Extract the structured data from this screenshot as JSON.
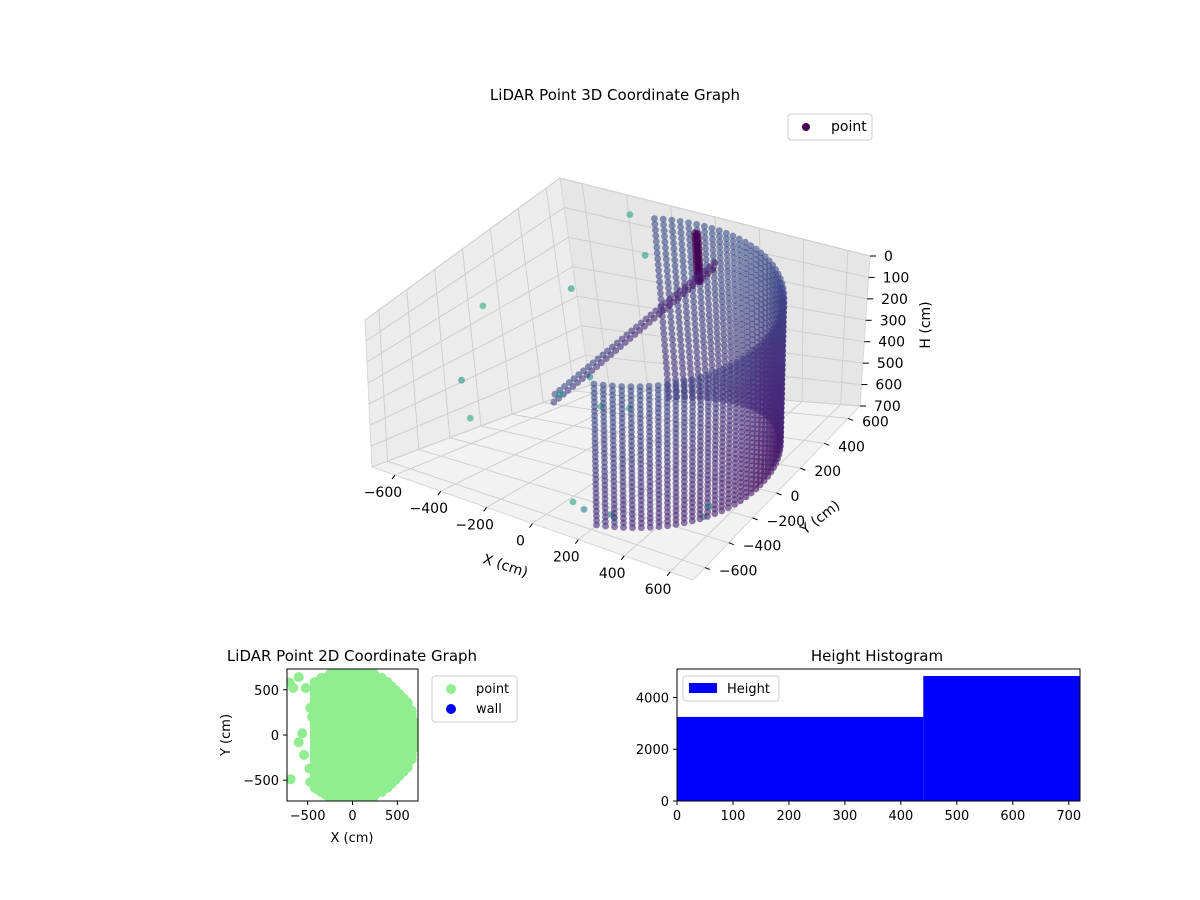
{
  "chart_data": [
    {
      "type": "scatter",
      "projection": "3d",
      "title": "LiDAR Point 3D Coordinate Graph",
      "xlabel": "X (cm)",
      "ylabel": "Y (cm)",
      "zlabel": "H (cm)",
      "xlim": [
        -700,
        700
      ],
      "ylim": [
        -700,
        700
      ],
      "zlim": [
        0,
        700
      ],
      "z_inverted": true,
      "x_ticks": [
        "−600",
        "−400",
        "−200",
        "0",
        "200",
        "400",
        "600"
      ],
      "y_ticks": [
        "−600",
        "−400",
        "−200",
        "0",
        "200",
        "400",
        "600"
      ],
      "z_ticks": [
        "0",
        "100",
        "200",
        "300",
        "400",
        "500",
        "600",
        "700"
      ],
      "colormap": "viridis",
      "grid": true,
      "legend": {
        "position": "top-right",
        "entries": [
          "point"
        ]
      },
      "series": [
        {
          "name": "point",
          "color": "#440154",
          "structures": [
            {
              "kind": "wall-arc",
              "radius": 620,
              "angle_from_deg": -70,
              "angle_to_deg": 110,
              "h_from": 0,
              "h_to": 700
            },
            {
              "kind": "post",
              "x": 0,
              "y": 560,
              "h_from": 0,
              "h_to": 200
            },
            {
              "kind": "ridge",
              "from": [
                -450,
                150
              ],
              "to": [
                100,
                520
              ],
              "h_from": 100,
              "h_to": 600
            }
          ],
          "outliers": [
            [
              -380,
              680,
              60
            ],
            [
              -690,
              80,
              250
            ],
            [
              -680,
              -120,
              480
            ],
            [
              -640,
              -140,
              620
            ],
            [
              -540,
              460,
              280
            ],
            [
              -300,
              640,
              180
            ],
            [
              -420,
              360,
              560
            ],
            [
              -380,
              100,
              540
            ],
            [
              -260,
              200,
              600
            ],
            [
              150,
              -650,
              560
            ],
            [
              180,
              -620,
              600
            ],
            [
              560,
              -310,
              620
            ],
            [
              520,
              -280,
              700
            ],
            [
              200,
              -450,
              700
            ],
            [
              230,
              -480,
              690
            ],
            [
              -210,
              320,
              640
            ]
          ]
        }
      ]
    },
    {
      "type": "scatter",
      "title": "LiDAR Point 2D Coordinate Graph",
      "xlabel": "X (cm)",
      "ylabel": "Y (cm)",
      "xlim": [
        -730,
        730
      ],
      "ylim": [
        -730,
        730
      ],
      "x_ticks": [
        "−500",
        "0",
        "500"
      ],
      "y_ticks": [
        "−500",
        "0",
        "500"
      ],
      "legend": {
        "position": "outside-right",
        "entries": [
          "point",
          "wall"
        ]
      },
      "series": [
        {
          "name": "point",
          "color": "#90ee90",
          "filled_region": {
            "kind": "disc-segment",
            "radius": 720,
            "chord_x": -420
          }
        },
        {
          "name": "wall",
          "color": "#0000ff",
          "values": []
        }
      ],
      "extra_points": [
        [
          -700,
          580
        ],
        [
          -660,
          520
        ],
        [
          -600,
          640
        ],
        [
          -520,
          520
        ],
        [
          -470,
          300
        ],
        [
          -450,
          200
        ],
        [
          -560,
          20
        ],
        [
          -600,
          -80
        ],
        [
          -540,
          -220
        ],
        [
          -480,
          -370
        ],
        [
          -470,
          -520
        ],
        [
          -390,
          -600
        ],
        [
          -300,
          -660
        ],
        [
          -250,
          -700
        ],
        [
          -690,
          -490
        ],
        [
          -350,
          560
        ],
        [
          -400,
          420
        ]
      ]
    },
    {
      "type": "bar",
      "subtype": "histogram",
      "title": "Height Histogram",
      "xlim": [
        0,
        720
      ],
      "ylim": [
        0,
        5100
      ],
      "x_ticks": [
        "0",
        "100",
        "200",
        "300",
        "400",
        "500",
        "600",
        "700"
      ],
      "y_ticks": [
        "0",
        "2000",
        "4000"
      ],
      "legend": {
        "position": "top-left",
        "entries": [
          "Height"
        ]
      },
      "series": [
        {
          "name": "Height",
          "color": "#0000ff",
          "bins": [
            [
              0,
              440
            ],
            [
              440,
              720
            ]
          ],
          "values": [
            3250,
            4830
          ]
        }
      ]
    }
  ]
}
